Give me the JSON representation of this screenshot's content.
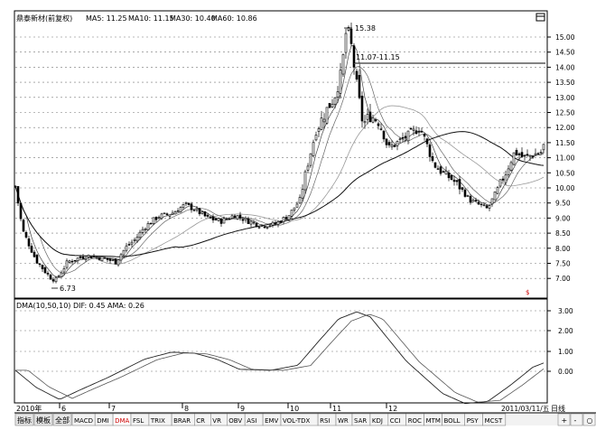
{
  "main_panel": {
    "header": "鼎泰新材(前复权)",
    "ma_labels": [
      "MA5: 11.25",
      "MA10: 11.15",
      "MA30: 10.40",
      "MA60: 10.86"
    ],
    "max_label": "15.38",
    "range_label": "11.07-11.15",
    "min_label": "6.73",
    "marker": "$",
    "corner_icon": "window-icon",
    "y_ticks": [
      "15.00",
      "14.50",
      "14.00",
      "13.50",
      "13.00",
      "12.50",
      "12.00",
      "11.50",
      "11.00",
      "10.50",
      "10.00",
      "9.50",
      "9.00",
      "8.50",
      "8.00",
      "7.50",
      "7.00"
    ]
  },
  "indicator_panel": {
    "header": "DMA(10,50,10)  DIF: 0.45  AMA: 0.26",
    "y_ticks": [
      "3.00",
      "2.00",
      "1.00",
      "0.00"
    ]
  },
  "time_axis": {
    "start_label": "2010年",
    "months": [
      "6",
      "7",
      "8",
      "9",
      "10",
      "11",
      "12"
    ],
    "end_label": "2011/03/11/五",
    "period_label": "日线"
  },
  "tabs": {
    "left": [
      "指标",
      "模板",
      "全部"
    ],
    "indicators": [
      "MACD",
      "DMI",
      "DMA",
      "FSL",
      "TRIX",
      "BRAR",
      "CR",
      "VR",
      "OBV",
      "ASI",
      "EMV",
      "VOL-TDX",
      "RSI",
      "WR",
      "SAR",
      "KDJ",
      "CCI",
      "ROC",
      "MTM",
      "BOLL",
      "PSY",
      "MCST"
    ],
    "active": "DMA",
    "right_buttons": [
      "+",
      "-",
      "○"
    ]
  },
  "colors": {
    "accent_red": "#cc0000",
    "active_tab_text": "#cc0000",
    "candle": "#000000"
  }
}
